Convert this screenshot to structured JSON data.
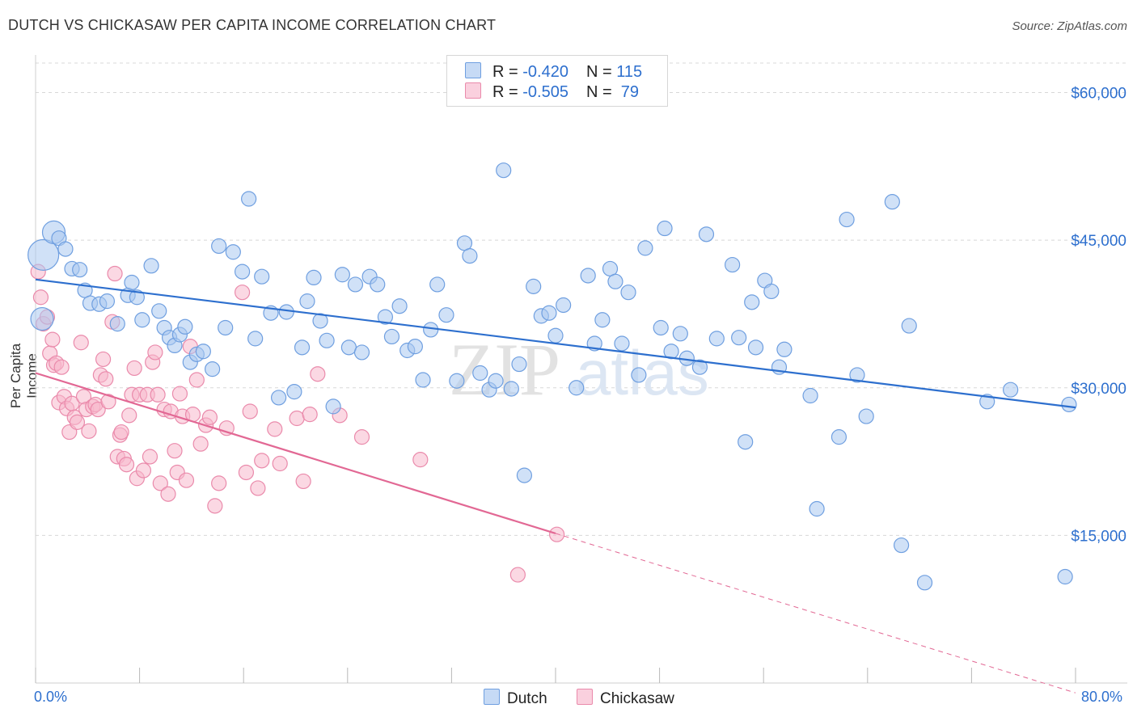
{
  "title": "DUTCH VS CHICKASAW PER CAPITA INCOME CORRELATION CHART",
  "source": "Source: ZipAtlas.com",
  "watermark": {
    "zip": "ZIP",
    "atlas": "atlas"
  },
  "legend": {
    "rows": [
      {
        "r_label": "R = ",
        "r_value": "-0.420",
        "n_label": "N = ",
        "n_value": "115",
        "color": "#aac8f0"
      },
      {
        "r_label": "R = ",
        "r_value": "-0.505",
        "n_label": "N = ",
        "n_value": " 79",
        "color": "#f7b8cc"
      }
    ]
  },
  "bottom_legend": {
    "dutch": "Dutch",
    "chickasaw": "Chickasaw"
  },
  "colors": {
    "dutch": "#2d6fce",
    "dutch_fill": "#aac8f0",
    "chickasaw": "#e26894",
    "chickasaw_fill": "#f7b8cc",
    "grid": "#d8d8d8",
    "axis_label": "#2d6fce"
  },
  "chart_data": {
    "type": "scatter",
    "xlabel": "",
    "ylabel": "Per Capita Income",
    "xlim": [
      0,
      80
    ],
    "ylim": [
      0,
      63000
    ],
    "x_tick_labels": {
      "left": "0.0%",
      "right": "80.0%"
    },
    "y_ticks": [
      {
        "value": 15000,
        "label": "$15,000"
      },
      {
        "value": 30000,
        "label": "$30,000"
      },
      {
        "value": 45000,
        "label": "$45,000"
      },
      {
        "value": 60000,
        "label": "$60,000"
      }
    ],
    "grid": true,
    "series": [
      {
        "name": "Dutch",
        "trend": {
          "x": [
            0,
            80
          ],
          "y": [
            41000,
            28000
          ]
        },
        "points": [
          [
            0.6,
            43500
          ],
          [
            1.4,
            45800
          ],
          [
            1.8,
            45200
          ],
          [
            0.5,
            37000
          ],
          [
            2.3,
            44100
          ],
          [
            2.8,
            42100
          ],
          [
            3.4,
            42000
          ],
          [
            3.8,
            39900
          ],
          [
            4.2,
            38600
          ],
          [
            4.9,
            38500
          ],
          [
            5.5,
            38800
          ],
          [
            6.3,
            36500
          ],
          [
            7.1,
            39400
          ],
          [
            7.4,
            40700
          ],
          [
            7.8,
            39200
          ],
          [
            8.2,
            36900
          ],
          [
            8.9,
            42400
          ],
          [
            9.5,
            37800
          ],
          [
            9.9,
            36100
          ],
          [
            10.3,
            35100
          ],
          [
            10.7,
            34300
          ],
          [
            11.1,
            35400
          ],
          [
            11.5,
            36200
          ],
          [
            11.9,
            32600
          ],
          [
            12.4,
            33400
          ],
          [
            12.9,
            33700
          ],
          [
            13.6,
            31900
          ],
          [
            14.1,
            44400
          ],
          [
            14.6,
            36100
          ],
          [
            15.2,
            43800
          ],
          [
            15.9,
            41800
          ],
          [
            16.4,
            49200
          ],
          [
            16.9,
            35000
          ],
          [
            17.4,
            41300
          ],
          [
            18.1,
            37600
          ],
          [
            18.7,
            29000
          ],
          [
            19.3,
            37700
          ],
          [
            19.9,
            29600
          ],
          [
            20.5,
            34100
          ],
          [
            20.9,
            38800
          ],
          [
            21.4,
            41200
          ],
          [
            21.9,
            36800
          ],
          [
            22.4,
            34800
          ],
          [
            22.9,
            28100
          ],
          [
            23.6,
            41500
          ],
          [
            24.1,
            34100
          ],
          [
            24.6,
            40500
          ],
          [
            25.1,
            33600
          ],
          [
            25.7,
            41300
          ],
          [
            26.3,
            40500
          ],
          [
            26.9,
            37200
          ],
          [
            27.4,
            35200
          ],
          [
            28.0,
            38300
          ],
          [
            28.6,
            33800
          ],
          [
            29.2,
            34200
          ],
          [
            29.8,
            30800
          ],
          [
            30.4,
            35900
          ],
          [
            30.9,
            40500
          ],
          [
            31.6,
            37400
          ],
          [
            32.4,
            30700
          ],
          [
            33.0,
            44700
          ],
          [
            33.4,
            43400
          ],
          [
            34.2,
            31500
          ],
          [
            34.9,
            29800
          ],
          [
            35.4,
            30700
          ],
          [
            36.0,
            52100
          ],
          [
            36.6,
            29900
          ],
          [
            37.2,
            32400
          ],
          [
            37.6,
            21100
          ],
          [
            38.3,
            40300
          ],
          [
            38.9,
            37300
          ],
          [
            39.5,
            37600
          ],
          [
            40.0,
            35300
          ],
          [
            40.6,
            38400
          ],
          [
            41.6,
            30000
          ],
          [
            42.5,
            41400
          ],
          [
            43.0,
            34500
          ],
          [
            43.6,
            36900
          ],
          [
            44.2,
            42100
          ],
          [
            44.6,
            40800
          ],
          [
            45.1,
            34500
          ],
          [
            45.6,
            39700
          ],
          [
            46.4,
            31300
          ],
          [
            46.9,
            44200
          ],
          [
            48.1,
            36100
          ],
          [
            48.4,
            46200
          ],
          [
            48.9,
            33700
          ],
          [
            49.6,
            35500
          ],
          [
            50.1,
            33000
          ],
          [
            51.1,
            32100
          ],
          [
            51.6,
            45600
          ],
          [
            52.4,
            35000
          ],
          [
            53.6,
            42500
          ],
          [
            54.1,
            35100
          ],
          [
            54.6,
            24500
          ],
          [
            55.1,
            38700
          ],
          [
            55.4,
            34100
          ],
          [
            56.1,
            40900
          ],
          [
            56.6,
            39800
          ],
          [
            57.2,
            32100
          ],
          [
            57.6,
            33900
          ],
          [
            59.6,
            29200
          ],
          [
            60.1,
            17700
          ],
          [
            61.8,
            25000
          ],
          [
            62.4,
            47100
          ],
          [
            63.2,
            31300
          ],
          [
            63.9,
            27100
          ],
          [
            65.9,
            48900
          ],
          [
            66.6,
            14000
          ],
          [
            67.2,
            36300
          ],
          [
            68.4,
            10200
          ],
          [
            73.2,
            28600
          ],
          [
            79.2,
            10800
          ],
          [
            75.0,
            29800
          ],
          [
            79.5,
            28300
          ]
        ],
        "point_sizes": {
          "0": "large",
          "1": "medium",
          "3": "medium"
        }
      },
      {
        "name": "Chickasaw",
        "trend": {
          "x": [
            0,
            40
          ],
          "y": [
            31500,
            15200
          ]
        },
        "trend_dashed": {
          "x": [
            40,
            80
          ],
          "y": [
            15200,
            -1000
          ]
        },
        "points": [
          [
            0.2,
            41800
          ],
          [
            0.4,
            39200
          ],
          [
            0.6,
            36500
          ],
          [
            0.9,
            37200
          ],
          [
            1.1,
            33500
          ],
          [
            1.3,
            34900
          ],
          [
            1.4,
            32300
          ],
          [
            1.6,
            32500
          ],
          [
            1.8,
            28500
          ],
          [
            2.0,
            32100
          ],
          [
            2.2,
            29100
          ],
          [
            2.4,
            27900
          ],
          [
            2.6,
            25500
          ],
          [
            2.8,
            28400
          ],
          [
            3.0,
            27000
          ],
          [
            3.2,
            26500
          ],
          [
            3.5,
            34600
          ],
          [
            3.7,
            29100
          ],
          [
            3.9,
            27800
          ],
          [
            4.1,
            25600
          ],
          [
            4.4,
            28100
          ],
          [
            4.6,
            28300
          ],
          [
            4.8,
            27800
          ],
          [
            5.0,
            31300
          ],
          [
            5.2,
            32900
          ],
          [
            5.4,
            30900
          ],
          [
            5.6,
            28600
          ],
          [
            5.9,
            36700
          ],
          [
            6.1,
            41600
          ],
          [
            6.3,
            23000
          ],
          [
            6.5,
            25200
          ],
          [
            6.6,
            25500
          ],
          [
            6.8,
            22800
          ],
          [
            7.0,
            22200
          ],
          [
            7.2,
            27200
          ],
          [
            7.4,
            29300
          ],
          [
            7.6,
            32000
          ],
          [
            7.8,
            20800
          ],
          [
            8.0,
            29300
          ],
          [
            8.3,
            21600
          ],
          [
            8.6,
            29300
          ],
          [
            8.8,
            23000
          ],
          [
            9.0,
            32600
          ],
          [
            9.2,
            33600
          ],
          [
            9.4,
            29300
          ],
          [
            9.6,
            20300
          ],
          [
            9.9,
            27800
          ],
          [
            10.2,
            19200
          ],
          [
            10.4,
            27600
          ],
          [
            10.7,
            23600
          ],
          [
            10.9,
            21400
          ],
          [
            11.1,
            29400
          ],
          [
            11.3,
            27100
          ],
          [
            11.6,
            20600
          ],
          [
            11.9,
            34200
          ],
          [
            12.1,
            27300
          ],
          [
            12.4,
            30800
          ],
          [
            12.7,
            24300
          ],
          [
            13.1,
            26200
          ],
          [
            13.4,
            27000
          ],
          [
            13.8,
            18000
          ],
          [
            14.1,
            20300
          ],
          [
            14.7,
            25900
          ],
          [
            15.9,
            39700
          ],
          [
            16.2,
            21400
          ],
          [
            16.5,
            27600
          ],
          [
            17.1,
            19800
          ],
          [
            17.4,
            22600
          ],
          [
            18.4,
            25800
          ],
          [
            18.8,
            22300
          ],
          [
            20.1,
            26900
          ],
          [
            20.6,
            20500
          ],
          [
            21.1,
            27300
          ],
          [
            21.7,
            31400
          ],
          [
            23.4,
            27200
          ],
          [
            25.1,
            25000
          ],
          [
            29.6,
            22700
          ],
          [
            40.1,
            15100
          ],
          [
            37.1,
            11000
          ]
        ]
      }
    ]
  }
}
